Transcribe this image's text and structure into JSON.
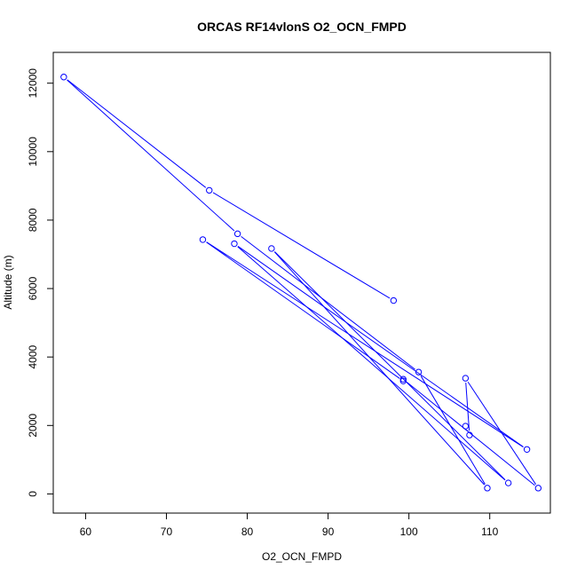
{
  "chart_data": {
    "type": "line",
    "title": "ORCAS RF14vlonS O2_OCN_FMPD",
    "xlabel": "O2_OCN_FMPD",
    "ylabel": "Altitude (m)",
    "xlim": [
      56,
      117.5
    ],
    "ylim": [
      -560,
      12900
    ],
    "xticks": [
      60,
      70,
      80,
      90,
      100,
      110
    ],
    "yticks": [
      0,
      2000,
      4000,
      6000,
      8000,
      10000,
      12000
    ],
    "grid": false,
    "markers": "open-circle",
    "series": [
      {
        "color": "#0000ff",
        "points": [
          [
            98.1,
            5650
          ],
          [
            75.3,
            8870
          ],
          [
            57.3,
            12180
          ],
          [
            78.8,
            7600
          ],
          [
            101.2,
            3560
          ],
          [
            109.7,
            170
          ],
          [
            83.0,
            7170
          ],
          [
            112.3,
            320
          ],
          [
            78.4,
            7310
          ],
          [
            114.6,
            1300
          ],
          [
            74.5,
            7430
          ],
          [
            99.3,
            3300
          ],
          [
            99.3,
            3350
          ],
          [
            116.0,
            170
          ],
          [
            107.0,
            3380
          ],
          [
            107.5,
            1720
          ],
          [
            107.0,
            1980
          ]
        ]
      }
    ]
  }
}
